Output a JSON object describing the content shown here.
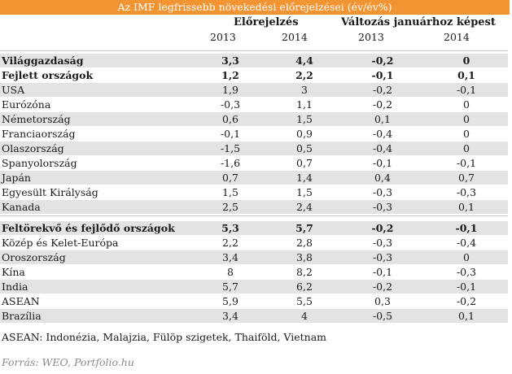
{
  "title": "Az IMF legfrissebb növekedési előrejelzései (év/év%)",
  "header": {
    "forecast_label": "Előrejelzés",
    "change_label": "Változás januárhoz képest",
    "years": [
      "2013",
      "2014",
      "2013",
      "2014"
    ]
  },
  "group1": [
    {
      "name": "Világgazdaság",
      "v": [
        "3,3",
        "4,4",
        "-0,2",
        "0"
      ],
      "bold": true,
      "shade": true
    },
    {
      "name": "Fejlett országok",
      "v": [
        "1,2",
        "2,2",
        "-0,1",
        "0,1"
      ],
      "bold": true,
      "shade": false
    },
    {
      "name": "USA",
      "v": [
        "1,9",
        "3",
        "-0,2",
        "-0,1"
      ],
      "bold": false,
      "shade": true
    },
    {
      "name": "Eurózóna",
      "v": [
        "-0,3",
        "1,1",
        "-0,2",
        "0"
      ],
      "bold": false,
      "shade": false
    },
    {
      "name": "Németország",
      "v": [
        "0,6",
        "1,5",
        "0,1",
        "0"
      ],
      "bold": false,
      "shade": true
    },
    {
      "name": "Franciaország",
      "v": [
        "-0,1",
        "0,9",
        "-0,4",
        "0"
      ],
      "bold": false,
      "shade": false
    },
    {
      "name": "Olaszország",
      "v": [
        "-1,5",
        "0,5",
        "-0,4",
        "0"
      ],
      "bold": false,
      "shade": true
    },
    {
      "name": "Spanyolország",
      "v": [
        "-1,6",
        "0,7",
        "-0,1",
        "-0,1"
      ],
      "bold": false,
      "shade": false
    },
    {
      "name": "Japán",
      "v": [
        "0,7",
        "1,4",
        "0,4",
        "0,7"
      ],
      "bold": false,
      "shade": true
    },
    {
      "name": "Egyesült Királyság",
      "v": [
        "1,5",
        "1,5",
        "-0,3",
        "-0,3"
      ],
      "bold": false,
      "shade": false
    },
    {
      "name": "Kanada",
      "v": [
        "2,5",
        "2,4",
        "-0,3",
        "0,1"
      ],
      "bold": false,
      "shade": true
    }
  ],
  "group2": [
    {
      "name": "Feltörekvő és fejlődő országok",
      "v": [
        "5,3",
        "5,7",
        "-0,2",
        "-0,1"
      ],
      "bold": true,
      "shade": true
    },
    {
      "name": "Közép és Kelet-Európa",
      "v": [
        "2,2",
        "2,8",
        "-0,3",
        "-0,4"
      ],
      "bold": false,
      "shade": false
    },
    {
      "name": "Oroszország",
      "v": [
        "3,4",
        "3,8",
        "-0,3",
        "0"
      ],
      "bold": false,
      "shade": true
    },
    {
      "name": "Kína",
      "v": [
        "8",
        "8,2",
        "-0,1",
        "-0,3"
      ],
      "bold": false,
      "shade": false
    },
    {
      "name": "India",
      "v": [
        "5,7",
        "6,2",
        "-0,2",
        "-0,1"
      ],
      "bold": false,
      "shade": true
    },
    {
      "name": "ASEAN",
      "v": [
        "5,9",
        "5,5",
        "0,3",
        "-0,2"
      ],
      "bold": false,
      "shade": false
    },
    {
      "name": "Brazília",
      "v": [
        "3,4",
        "4",
        "-0,5",
        "0,1"
      ],
      "bold": false,
      "shade": true
    }
  ],
  "note": "ASEAN: Indonézia, Malajzia, Fülöp szigetek, Thaiföld, Vietnam",
  "source": "Forrás: WEO, Portfolio.hu"
}
